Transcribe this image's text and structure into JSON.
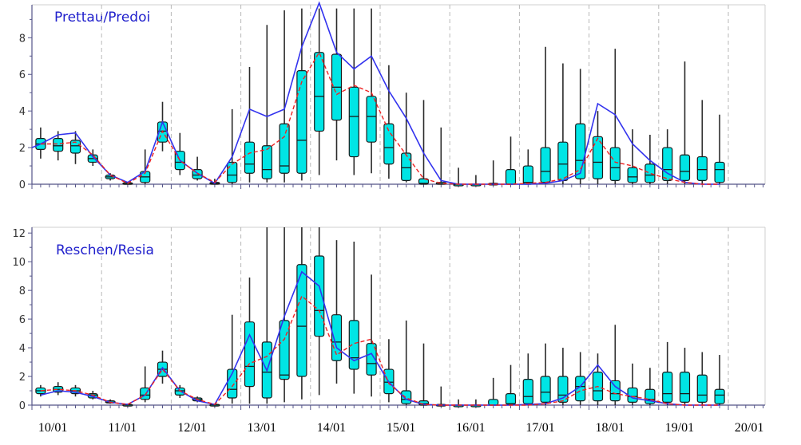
{
  "colors": {
    "box": "#00e5e5",
    "box_edge": "#1a1a1a",
    "whisker": "#2a2a2a",
    "ensemble_line": "#3333ee",
    "median_line": "#ee2222",
    "grid": "#b8b8b8",
    "axis": "#555588",
    "title": "#2020cc"
  },
  "chart_data": [
    {
      "type": "box",
      "title": "Prettau/Predoi",
      "ylim": [
        0,
        9.8
      ],
      "yticks": [
        0,
        2,
        4,
        6,
        8
      ],
      "xlim": [
        0,
        10.5
      ],
      "xtick_labels": [
        "10/01",
        "11/01",
        "12/01",
        "13/01",
        "14/01",
        "15/01",
        "16/01",
        "17/01",
        "18/01",
        "19/01",
        "20/01"
      ],
      "grid": true,
      "boxes": [
        {
          "x": 0.125,
          "low": 1.4,
          "q1": 1.9,
          "median": 2.2,
          "q3": 2.5,
          "high": 3.1
        },
        {
          "x": 0.375,
          "low": 1.3,
          "q1": 1.8,
          "median": 2.1,
          "q3": 2.5,
          "high": 2.9
        },
        {
          "x": 0.625,
          "low": 1.1,
          "q1": 1.7,
          "median": 2.1,
          "q3": 2.4,
          "high": 2.9
        },
        {
          "x": 0.875,
          "low": 1.0,
          "q1": 1.2,
          "median": 1.4,
          "q3": 1.6,
          "high": 1.9
        },
        {
          "x": 1.125,
          "low": 0.2,
          "q1": 0.3,
          "median": 0.4,
          "q3": 0.5,
          "high": 0.6
        },
        {
          "x": 1.375,
          "low": 0.0,
          "q1": 0.0,
          "median": 0.05,
          "q3": 0.08,
          "high": 0.1
        },
        {
          "x": 1.625,
          "low": 0.0,
          "q1": 0.1,
          "median": 0.4,
          "q3": 0.7,
          "high": 1.9
        },
        {
          "x": 1.875,
          "low": 1.8,
          "q1": 2.3,
          "median": 2.9,
          "q3": 3.4,
          "high": 4.5
        },
        {
          "x": 2.125,
          "low": 0.5,
          "q1": 0.8,
          "median": 1.2,
          "q3": 1.8,
          "high": 2.8
        },
        {
          "x": 2.375,
          "low": 0.2,
          "q1": 0.3,
          "median": 0.5,
          "q3": 0.8,
          "high": 1.5
        },
        {
          "x": 2.625,
          "low": 0.0,
          "q1": 0.0,
          "median": 0.05,
          "q3": 0.1,
          "high": 0.3
        },
        {
          "x": 2.875,
          "low": 0.0,
          "q1": 0.1,
          "median": 0.5,
          "q3": 1.2,
          "high": 4.1
        },
        {
          "x": 3.125,
          "low": 0.1,
          "q1": 0.6,
          "median": 1.1,
          "q3": 2.3,
          "high": 6.4
        },
        {
          "x": 3.375,
          "low": 0.1,
          "q1": 0.3,
          "median": 0.8,
          "q3": 2.1,
          "high": 8.7
        },
        {
          "x": 3.625,
          "low": 0.1,
          "q1": 0.6,
          "median": 1.0,
          "q3": 3.3,
          "high": 9.5
        },
        {
          "x": 3.875,
          "low": 0.2,
          "q1": 0.6,
          "median": 2.4,
          "q3": 6.2,
          "high": 9.6
        },
        {
          "x": 4.125,
          "low": 0.5,
          "q1": 2.9,
          "median": 4.8,
          "q3": 7.2,
          "high": 9.6
        },
        {
          "x": 4.375,
          "low": 1.3,
          "q1": 3.5,
          "median": 5.3,
          "q3": 7.1,
          "high": 9.6
        },
        {
          "x": 4.625,
          "low": 0.5,
          "q1": 1.5,
          "median": 3.7,
          "q3": 5.3,
          "high": 9.6
        },
        {
          "x": 4.875,
          "low": 0.6,
          "q1": 2.3,
          "median": 3.7,
          "q3": 4.8,
          "high": 9.6
        },
        {
          "x": 5.125,
          "low": 0.3,
          "q1": 1.1,
          "median": 2.0,
          "q3": 3.3,
          "high": 6.5
        },
        {
          "x": 5.375,
          "low": 0.1,
          "q1": 0.2,
          "median": 0.9,
          "q3": 1.7,
          "high": 5.0
        },
        {
          "x": 5.625,
          "low": 0.0,
          "q1": 0.0,
          "median": 0.05,
          "q3": 0.3,
          "high": 4.6
        },
        {
          "x": 5.875,
          "low": 0.0,
          "q1": 0.0,
          "median": 0.02,
          "q3": 0.1,
          "high": 3.1
        },
        {
          "x": 6.125,
          "low": 0.0,
          "q1": 0.0,
          "median": 0.0,
          "q3": 0.0,
          "high": 0.9
        },
        {
          "x": 6.375,
          "low": 0.0,
          "q1": 0.0,
          "median": 0.0,
          "q3": 0.0,
          "high": 0.5
        },
        {
          "x": 6.625,
          "low": 0.0,
          "q1": 0.0,
          "median": 0.0,
          "q3": 0.05,
          "high": 1.3
        },
        {
          "x": 6.875,
          "low": 0.0,
          "q1": 0.0,
          "median": 0.0,
          "q3": 0.8,
          "high": 2.6
        },
        {
          "x": 7.125,
          "low": 0.0,
          "q1": 0.0,
          "median": 0.1,
          "q3": 1.0,
          "high": 1.9
        },
        {
          "x": 7.375,
          "low": 0.0,
          "q1": 0.1,
          "median": 0.7,
          "q3": 2.0,
          "high": 7.5
        },
        {
          "x": 7.625,
          "low": 0.0,
          "q1": 0.2,
          "median": 1.1,
          "q3": 2.3,
          "high": 6.6
        },
        {
          "x": 7.875,
          "low": 0.0,
          "q1": 0.3,
          "median": 1.3,
          "q3": 3.3,
          "high": 6.3
        },
        {
          "x": 8.125,
          "low": 0.0,
          "q1": 0.3,
          "median": 1.2,
          "q3": 2.6,
          "high": 4.0
        },
        {
          "x": 8.375,
          "low": 0.0,
          "q1": 0.2,
          "median": 0.9,
          "q3": 2.0,
          "high": 7.4
        },
        {
          "x": 8.625,
          "low": 0.0,
          "q1": 0.1,
          "median": 0.4,
          "q3": 0.9,
          "high": 3.0
        },
        {
          "x": 8.875,
          "low": 0.0,
          "q1": 0.1,
          "median": 0.5,
          "q3": 1.1,
          "high": 2.7
        },
        {
          "x": 9.125,
          "low": 0.0,
          "q1": 0.2,
          "median": 0.8,
          "q3": 2.0,
          "high": 3.0
        },
        {
          "x": 9.375,
          "low": 0.0,
          "q1": 0.2,
          "median": 0.7,
          "q3": 1.6,
          "high": 6.7
        },
        {
          "x": 9.625,
          "low": 0.0,
          "q1": 0.2,
          "median": 0.8,
          "q3": 1.5,
          "high": 4.6
        },
        {
          "x": 9.875,
          "low": 0.0,
          "q1": 0.1,
          "median": 0.8,
          "q3": 1.2,
          "high": 3.8
        }
      ],
      "series": [
        {
          "style": "solid-blue",
          "x": [
            0.0,
            0.125,
            0.375,
            0.625,
            0.875,
            1.125,
            1.375,
            1.625,
            1.875,
            2.125,
            2.375,
            2.625,
            2.875,
            3.125,
            3.375,
            3.625,
            3.875,
            4.125,
            4.375,
            4.625,
            4.875,
            5.125,
            5.375,
            5.625,
            5.875,
            6.125,
            6.375,
            6.625,
            6.875,
            7.125,
            7.375,
            7.625,
            7.875,
            8.125,
            8.375,
            8.625,
            8.875,
            9.125,
            9.375,
            9.625,
            9.875
          ],
          "values": [
            2.0,
            2.2,
            2.7,
            2.8,
            1.5,
            0.5,
            0.1,
            0.7,
            3.4,
            1.3,
            0.6,
            0.05,
            1.5,
            4.1,
            3.7,
            4.1,
            7.5,
            9.9,
            7.2,
            6.3,
            7.0,
            5.1,
            3.6,
            1.7,
            0.2,
            0.0,
            0.0,
            0.0,
            0.0,
            0.0,
            0.05,
            0.2,
            0.6,
            4.4,
            3.8,
            2.2,
            1.3,
            0.6,
            0.1,
            0.0,
            0.0
          ]
        },
        {
          "style": "dashed-red",
          "x": [
            0.125,
            0.375,
            0.625,
            0.875,
            1.125,
            1.375,
            1.625,
            1.875,
            2.125,
            2.375,
            2.625,
            2.875,
            3.125,
            3.375,
            3.625,
            3.875,
            4.125,
            4.375,
            4.625,
            4.875,
            5.125,
            5.375,
            5.625,
            5.875,
            6.125,
            6.375,
            6.625,
            6.875,
            7.125,
            7.375,
            7.625,
            7.875,
            8.125,
            8.375,
            8.625,
            8.875,
            9.125,
            9.375,
            9.625,
            9.875
          ],
          "values": [
            2.2,
            2.2,
            2.3,
            1.6,
            0.5,
            0.05,
            0.6,
            2.9,
            1.3,
            0.6,
            0.1,
            1.1,
            1.7,
            1.9,
            2.6,
            5.6,
            7.2,
            4.9,
            5.4,
            5.0,
            2.9,
            1.6,
            0.3,
            0.05,
            0.0,
            0.0,
            0.0,
            0.0,
            0.05,
            0.1,
            0.3,
            0.8,
            2.5,
            1.2,
            1.0,
            0.6,
            0.3,
            0.1,
            0.0,
            0.0
          ]
        }
      ]
    },
    {
      "type": "box",
      "title": "Reschen/Resia",
      "ylim": [
        0,
        12.4
      ],
      "yticks": [
        0,
        2,
        4,
        6,
        8,
        10,
        12
      ],
      "xlim": [
        0,
        10.5
      ],
      "xtick_labels": [
        "10/01",
        "11/01",
        "12/01",
        "13/01",
        "14/01",
        "15/01",
        "16/01",
        "17/01",
        "18/01",
        "19/01",
        "20/01"
      ],
      "grid": true,
      "boxes": [
        {
          "x": 0.125,
          "low": 0.6,
          "q1": 0.8,
          "median": 1.0,
          "q3": 1.2,
          "high": 1.4
        },
        {
          "x": 0.375,
          "low": 0.7,
          "q1": 0.9,
          "median": 1.1,
          "q3": 1.3,
          "high": 1.6
        },
        {
          "x": 0.625,
          "low": 0.6,
          "q1": 0.8,
          "median": 1.0,
          "q3": 1.2,
          "high": 1.4
        },
        {
          "x": 0.875,
          "low": 0.4,
          "q1": 0.5,
          "median": 0.7,
          "q3": 0.8,
          "high": 1.0
        },
        {
          "x": 1.125,
          "low": 0.1,
          "q1": 0.15,
          "median": 0.2,
          "q3": 0.3,
          "high": 0.4
        },
        {
          "x": 1.375,
          "low": 0.0,
          "q1": 0.0,
          "median": 0.02,
          "q3": 0.05,
          "high": 0.1
        },
        {
          "x": 1.625,
          "low": 0.2,
          "q1": 0.4,
          "median": 0.7,
          "q3": 1.2,
          "high": 2.7
        },
        {
          "x": 1.875,
          "low": 1.5,
          "q1": 2.0,
          "median": 2.5,
          "q3": 3.0,
          "high": 3.8
        },
        {
          "x": 2.125,
          "low": 0.5,
          "q1": 0.7,
          "median": 1.0,
          "q3": 1.2,
          "high": 1.4
        },
        {
          "x": 2.375,
          "low": 0.2,
          "q1": 0.3,
          "median": 0.4,
          "q3": 0.5,
          "high": 0.6
        },
        {
          "x": 2.625,
          "low": 0.0,
          "q1": 0.0,
          "median": 0.02,
          "q3": 0.05,
          "high": 0.1
        },
        {
          "x": 2.875,
          "low": 0.1,
          "q1": 0.5,
          "median": 1.1,
          "q3": 2.5,
          "high": 6.3
        },
        {
          "x": 3.125,
          "low": 0.1,
          "q1": 1.3,
          "median": 2.7,
          "q3": 5.8,
          "high": 8.9
        },
        {
          "x": 3.375,
          "low": 0.1,
          "q1": 0.5,
          "median": 2.3,
          "q3": 4.4,
          "high": 12.4
        },
        {
          "x": 3.625,
          "low": 0.2,
          "q1": 1.8,
          "median": 2.1,
          "q3": 5.9,
          "high": 12.4
        },
        {
          "x": 3.875,
          "low": 0.4,
          "q1": 2.0,
          "median": 5.5,
          "q3": 9.8,
          "high": 12.4
        },
        {
          "x": 4.125,
          "low": 0.7,
          "q1": 4.8,
          "median": 6.6,
          "q3": 10.4,
          "high": 12.4
        },
        {
          "x": 4.375,
          "low": 1.5,
          "q1": 3.1,
          "median": 4.4,
          "q3": 6.3,
          "high": 11.5
        },
        {
          "x": 4.625,
          "low": 0.8,
          "q1": 2.5,
          "median": 3.3,
          "q3": 5.9,
          "high": 11.4
        },
        {
          "x": 4.875,
          "low": 0.6,
          "q1": 2.1,
          "median": 2.9,
          "q3": 4.3,
          "high": 9.1
        },
        {
          "x": 5.125,
          "low": 0.2,
          "q1": 0.8,
          "median": 1.6,
          "q3": 2.5,
          "high": 4.6
        },
        {
          "x": 5.375,
          "low": 0.0,
          "q1": 0.1,
          "median": 0.4,
          "q3": 1.0,
          "high": 5.9
        },
        {
          "x": 5.625,
          "low": 0.0,
          "q1": 0.0,
          "median": 0.1,
          "q3": 0.3,
          "high": 4.3
        },
        {
          "x": 5.875,
          "low": 0.0,
          "q1": 0.0,
          "median": 0.0,
          "q3": 0.05,
          "high": 1.3
        },
        {
          "x": 6.125,
          "low": 0.0,
          "q1": 0.0,
          "median": 0.0,
          "q3": 0.0,
          "high": 0.4
        },
        {
          "x": 6.375,
          "low": 0.0,
          "q1": 0.0,
          "median": 0.0,
          "q3": 0.0,
          "high": 0.4
        },
        {
          "x": 6.625,
          "low": 0.0,
          "q1": 0.0,
          "median": 0.0,
          "q3": 0.4,
          "high": 1.9
        },
        {
          "x": 6.875,
          "low": 0.0,
          "q1": 0.05,
          "median": 0.1,
          "q3": 0.8,
          "high": 2.8
        },
        {
          "x": 7.125,
          "low": 0.0,
          "q1": 0.1,
          "median": 0.6,
          "q3": 1.8,
          "high": 3.6
        },
        {
          "x": 7.375,
          "low": 0.0,
          "q1": 0.2,
          "median": 0.9,
          "q3": 2.0,
          "high": 4.3
        },
        {
          "x": 7.625,
          "low": 0.0,
          "q1": 0.2,
          "median": 0.7,
          "q3": 2.0,
          "high": 4.0
        },
        {
          "x": 7.875,
          "low": 0.0,
          "q1": 0.3,
          "median": 1.3,
          "q3": 2.0,
          "high": 3.7
        },
        {
          "x": 8.125,
          "low": 0.0,
          "q1": 0.3,
          "median": 1.0,
          "q3": 2.3,
          "high": 3.6
        },
        {
          "x": 8.375,
          "low": 0.0,
          "q1": 0.3,
          "median": 0.8,
          "q3": 1.7,
          "high": 5.6
        },
        {
          "x": 8.625,
          "low": 0.0,
          "q1": 0.2,
          "median": 0.6,
          "q3": 1.2,
          "high": 2.9
        },
        {
          "x": 8.875,
          "low": 0.0,
          "q1": 0.1,
          "median": 0.4,
          "q3": 1.1,
          "high": 2.6
        },
        {
          "x": 9.125,
          "low": 0.0,
          "q1": 0.2,
          "median": 0.8,
          "q3": 2.3,
          "high": 4.4
        },
        {
          "x": 9.375,
          "low": 0.0,
          "q1": 0.2,
          "median": 0.8,
          "q3": 2.3,
          "high": 4.0
        },
        {
          "x": 9.625,
          "low": 0.0,
          "q1": 0.2,
          "median": 0.7,
          "q3": 2.1,
          "high": 3.7
        },
        {
          "x": 9.875,
          "low": 0.0,
          "q1": 0.1,
          "median": 0.7,
          "q3": 1.1,
          "high": 3.5
        }
      ],
      "series": [
        {
          "style": "solid-blue",
          "x": [
            0.125,
            0.375,
            0.625,
            0.875,
            1.125,
            1.375,
            1.625,
            1.875,
            2.125,
            2.375,
            2.625,
            2.875,
            3.125,
            3.375,
            3.625,
            3.875,
            4.125,
            4.375,
            4.625,
            4.875,
            5.125,
            5.375,
            5.625,
            5.875,
            6.125,
            6.375,
            6.625,
            6.875,
            7.125,
            7.375,
            7.625,
            7.875,
            8.125,
            8.375,
            8.625,
            8.875,
            9.125,
            9.375,
            9.625,
            9.875
          ],
          "values": [
            0.7,
            1.0,
            0.9,
            0.6,
            0.2,
            0.05,
            0.7,
            2.6,
            1.0,
            0.3,
            0.05,
            2.2,
            4.9,
            2.4,
            6.2,
            9.3,
            8.3,
            4.0,
            3.1,
            3.6,
            1.6,
            0.4,
            0.05,
            0.0,
            0.0,
            0.0,
            0.0,
            0.0,
            0.05,
            0.1,
            0.5,
            1.3,
            2.8,
            1.3,
            0.5,
            0.3,
            0.1,
            0.0,
            0.0,
            0.0
          ]
        },
        {
          "style": "dashed-red",
          "x": [
            0.125,
            0.375,
            0.625,
            0.875,
            1.125,
            1.375,
            1.625,
            1.875,
            2.125,
            2.375,
            2.625,
            2.875,
            3.125,
            3.375,
            3.625,
            3.875,
            4.125,
            4.375,
            4.625,
            4.875,
            5.125,
            5.375,
            5.625,
            5.875,
            6.125,
            6.375,
            6.625,
            6.875,
            7.125,
            7.375,
            7.625,
            7.875,
            8.125,
            8.375,
            8.625,
            8.875,
            9.125,
            9.375,
            9.625,
            9.875
          ],
          "values": [
            1.0,
            1.1,
            1.0,
            0.7,
            0.2,
            0.05,
            0.7,
            2.5,
            1.0,
            0.4,
            0.05,
            1.3,
            2.9,
            3.4,
            4.6,
            7.6,
            6.6,
            3.5,
            4.3,
            4.6,
            1.5,
            0.5,
            0.05,
            0.0,
            0.0,
            0.0,
            0.0,
            0.0,
            0.0,
            0.1,
            0.3,
            1.0,
            1.3,
            0.8,
            0.6,
            0.4,
            0.1,
            0.0,
            0.0,
            0.0
          ]
        }
      ]
    }
  ]
}
